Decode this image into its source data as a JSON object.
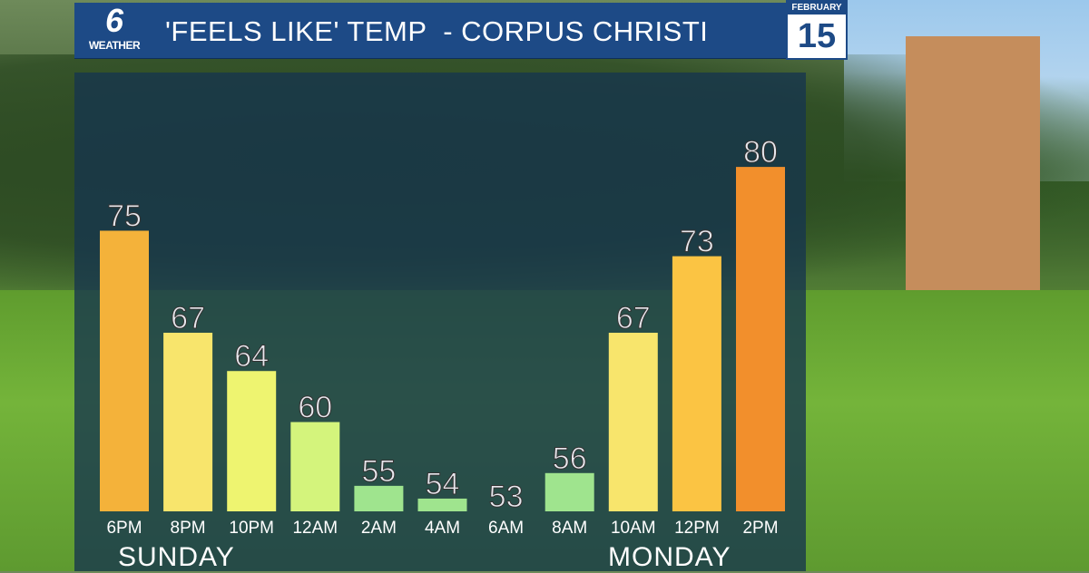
{
  "header": {
    "logo_number": "6",
    "logo_text": "WEATHER",
    "title": "'FEELS LIKE' TEMP  - CORPUS CHRISTI",
    "month": "FEBRUARY",
    "day": "15"
  },
  "chart_data": {
    "type": "bar",
    "title": "'FEELS LIKE' TEMP  - CORPUS CHRISTI",
    "categories": [
      "6PM",
      "8PM",
      "10PM",
      "12AM",
      "2AM",
      "4AM",
      "6AM",
      "8AM",
      "10AM",
      "12PM",
      "2PM"
    ],
    "values": [
      75,
      67,
      64,
      60,
      55,
      54,
      53,
      56,
      67,
      73,
      80
    ],
    "colors": [
      "#f4b23a",
      "#f8e56c",
      "#eef470",
      "#d4f47c",
      "#9fe48e",
      "#9fe48e",
      "#9fe48e",
      "#9fe48e",
      "#f8e56c",
      "#fbc443",
      "#f28f2c"
    ],
    "day_labels": [
      "SUNDAY",
      "MONDAY"
    ],
    "grid": false
  }
}
